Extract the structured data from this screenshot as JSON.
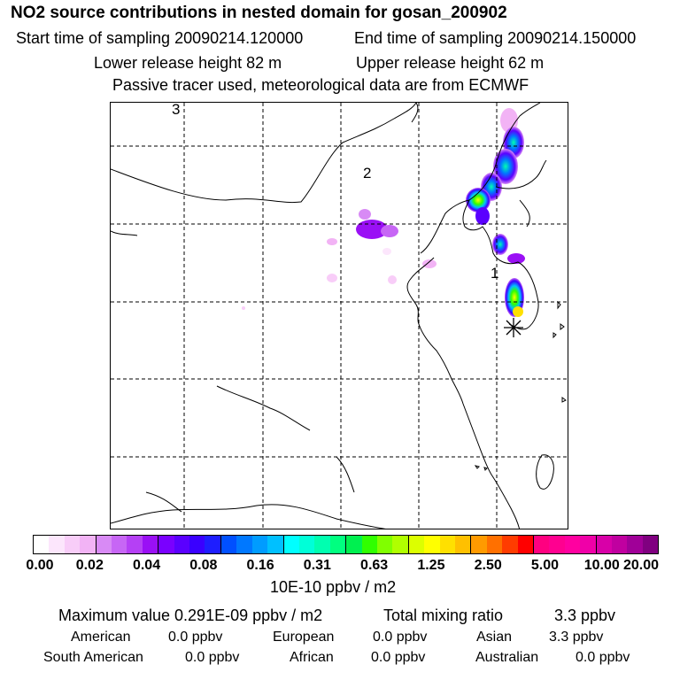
{
  "header": {
    "title": "NO2 source contributions in nested domain for gosan_200902",
    "start": "Start time of sampling 20090214.120000",
    "end": "End time of sampling 20090214.150000",
    "lower": "Lower release height   82 m",
    "upper": "Upper release height   62 m",
    "tracer": "Passive tracer used, meteorological data are from ECMWF"
  },
  "map": {
    "labels": [
      "1",
      "2",
      "3"
    ],
    "receptor_icon": "asterisk-receptor-icon"
  },
  "colorbar": {
    "colors": [
      "#ffffff",
      "#fce6fc",
      "#f8cdf8",
      "#f2b3f5",
      "#d88af5",
      "#c766f5",
      "#b540f5",
      "#9a10f5",
      "#7a00ff",
      "#5a00ff",
      "#3a00ff",
      "#1e1eff",
      "#0050ff",
      "#0078ff",
      "#009cff",
      "#00c0ff",
      "#00ffff",
      "#00ffd8",
      "#00ffb0",
      "#00ff80",
      "#00f050",
      "#30ff00",
      "#80ff00",
      "#b0ff00",
      "#dcff00",
      "#ffff00",
      "#ffe000",
      "#ffc000",
      "#ff9a00",
      "#ff7000",
      "#ff3c00",
      "#ff0000",
      "#ff0080",
      "#ff0090",
      "#ff00a0",
      "#f000a8",
      "#d800a8",
      "#c000a0",
      "#a00098",
      "#800080"
    ],
    "ticks": [
      "0.00",
      "0.02",
      "0.04",
      "0.08",
      "0.16",
      "0.31",
      "0.63",
      "1.25",
      "2.50",
      "5.00",
      "10.00",
      "20.00"
    ],
    "unit": "10E-10 ppbv / m2"
  },
  "footer": {
    "max_value": "Maximum value  0.291E-09 ppbv / m2",
    "total_label": "Total mixing ratio",
    "total_value": "3.3 ppbv",
    "regions": [
      {
        "name": "American",
        "value": "0.0 ppbv"
      },
      {
        "name": "European",
        "value": "0.0 ppbv"
      },
      {
        "name": "Asian",
        "value": "3.3 ppbv"
      },
      {
        "name": "South American",
        "value": "0.0 ppbv"
      },
      {
        "name": "African",
        "value": "0.0 ppbv"
      },
      {
        "name": "Australian",
        "value": "0.0 ppbv"
      }
    ]
  }
}
